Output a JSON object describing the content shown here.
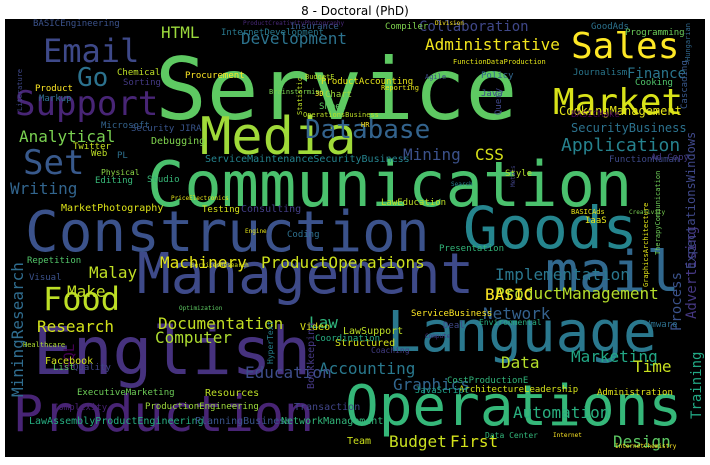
{
  "title": "8 - Doctoral (PhD)",
  "colors": {
    "background": "#000000"
  },
  "words": [
    "Service",
    "Communication",
    "Construction",
    "Management",
    "English",
    "Language",
    "Operations",
    "Production",
    "Goods",
    "mail",
    "Media",
    "Sales",
    "Market",
    "Email",
    "Support",
    "Database",
    "Food",
    "Set",
    "Go",
    "Administrative",
    "Application",
    "Development",
    "Analytical",
    "Writing",
    "Documentation",
    "ProductManagement",
    "Implementation",
    "Automation",
    "Accounting",
    "Marketing",
    "Education",
    "Computer",
    "Research",
    "Budget",
    "First",
    "Design",
    "Time",
    "Data",
    "Graphics",
    "Network",
    "BASIC",
    "Malay",
    "Make",
    "Machinery",
    "ProductOperations",
    "Law",
    "Finance",
    "Mining",
    "CSS",
    "HTML",
    "Collaboration",
    "Training",
    "Advertising",
    "Process",
    "MiningResearch",
    "SQL",
    "SecurityBusiness",
    "ExpectationsWindows",
    "CookingManagement",
    "MarketPhotography",
    "Debugging",
    "Insurance",
    "Compiler",
    "Programming",
    "Journalism",
    "Policy",
    "BASICEngineering",
    "ServiceMaintenanceSecurityBusiness",
    "FunctionHuman",
    "Cascading",
    "LawAssemblyProductEngineering",
    "PlanningBusiness",
    "NetworkManagement",
    "Team",
    "Structured",
    "Bookkeeping",
    "Transaction",
    "Resources",
    "Video",
    "LawSupport",
    "Coordination",
    "HyperText",
    "Facebook",
    "ExecutiveMarketing",
    "ProductionEngineering",
    "Complexity",
    "Administration",
    "ArchitectureLeadership",
    "Coaching",
    "CostProductionE",
    "JavaScript",
    "Environmental",
    "Presentation",
    "ServicesResearch",
    "Vmware",
    "LawEducation",
    "Consulting",
    "Testing",
    "Studio",
    "Editing",
    "Physical",
    "Twitter",
    "Microsoft",
    "Security JIRA",
    "Chemical",
    "Sorting",
    "Markup",
    "Procurement",
    "InternetDevelopment",
    "ProductAccounting",
    "FunctionDataProduction",
    "GoodAds",
    "Reporting",
    "Agile",
    "BudgetE",
    "Brainstorming",
    "Sheet",
    "Chart",
    "OperationsBusiness",
    "HR",
    "Query",
    "Java",
    "Style",
    "Search",
    "Metals",
    "PriceElectronics",
    "Coding",
    "Engine",
    "Repetition",
    "Visual",
    "Optimization",
    "Healthcare",
    "List",
    "Quality",
    "Division",
    "Product",
    "Literature",
    "GraphicsArchitecture",
    "TherapyCommunication",
    "Creativity",
    "IaaS",
    "Deal",
    "ServiceBusiness",
    "Statistic",
    "Web",
    "PL",
    "3D",
    "Cooking",
    "BASICMake",
    "Ad Copy",
    "BASICAds",
    "Internet",
    "InternetChemistry",
    "ProductCreativityPhotography",
    "Compute",
    "Data Center",
    "Hungarian"
  ]
}
